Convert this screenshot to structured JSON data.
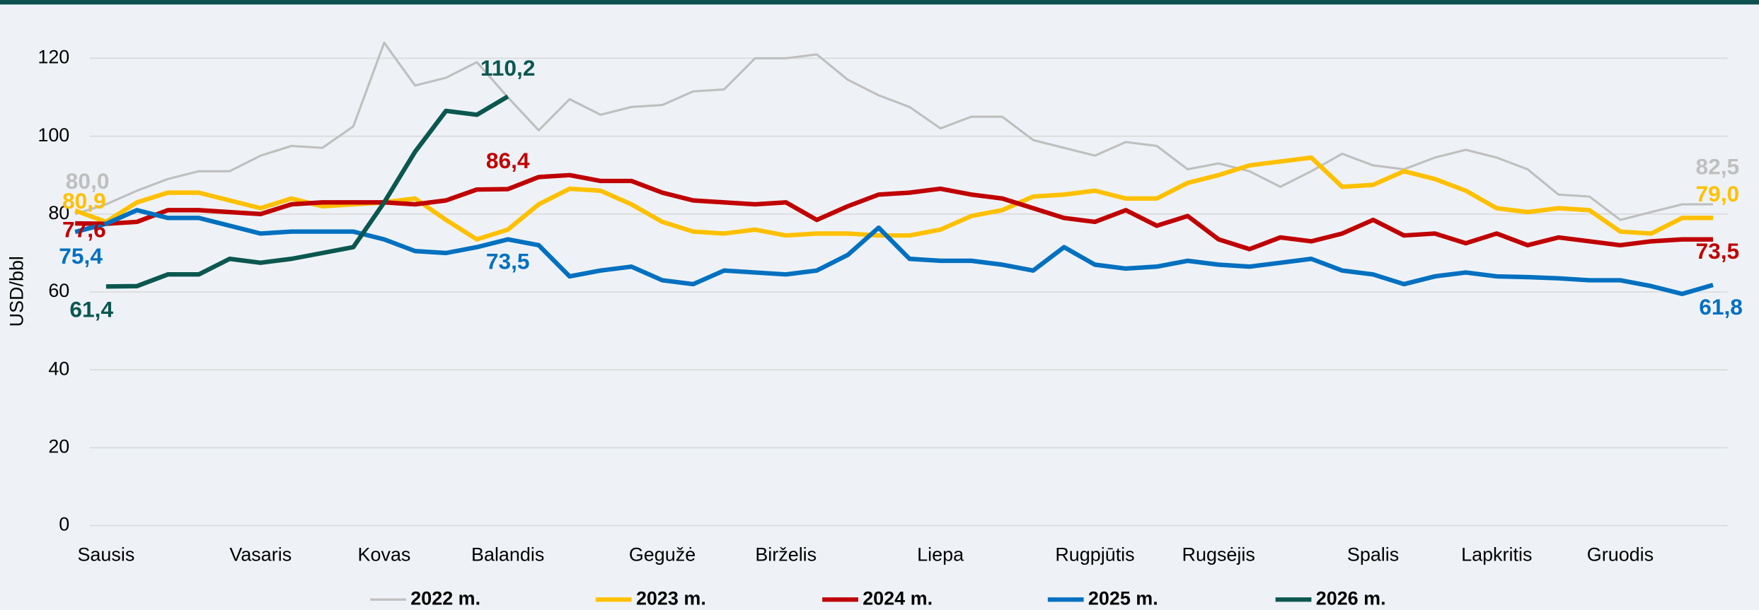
{
  "chart_data": {
    "type": "line",
    "ylabel": "USD/bbl",
    "categories": [
      null,
      "Sausis",
      null,
      null,
      null,
      null,
      "Vasaris",
      null,
      null,
      null,
      "Kovas",
      null,
      null,
      null,
      "Balandis",
      null,
      null,
      null,
      null,
      "Gegužė",
      null,
      null,
      null,
      "Birželis",
      null,
      null,
      null,
      null,
      "Liepa",
      null,
      null,
      null,
      null,
      "Rugpjūtis",
      null,
      null,
      null,
      "Rugsėjis",
      null,
      null,
      null,
      null,
      "Spalis",
      null,
      null,
      null,
      "Lapkritis",
      null,
      null,
      null,
      "Gruodis",
      null,
      null,
      null
    ],
    "ylim": [
      0,
      120
    ],
    "yticks": [
      0,
      20,
      40,
      60,
      80,
      100,
      120
    ],
    "grid": true,
    "legend": "bottom",
    "series": [
      {
        "name": "2022 m.",
        "color": "#bfbfbf",
        "values": [
          80.0,
          82.5,
          86,
          89,
          91,
          91,
          95,
          97.5,
          97,
          102.5,
          124,
          113,
          115,
          119,
          110,
          101.5,
          109.5,
          105.5,
          107.5,
          108,
          111.5,
          112,
          120,
          120,
          121,
          114.5,
          110.5,
          107.5,
          102,
          105,
          105,
          99,
          97,
          95,
          98.5,
          97.5,
          91.5,
          93,
          91,
          87,
          91,
          95.5,
          92.5,
          91.5,
          94.5,
          96.5,
          94.5,
          91.5,
          85,
          84.5,
          78.5,
          80.5,
          82.5,
          82.5
        ],
        "value_labels": [
          "80,0",
          null,
          null,
          null,
          null,
          null,
          null,
          null,
          null,
          null,
          null,
          null,
          null,
          null,
          null,
          null,
          null,
          null,
          null,
          null,
          null,
          null,
          null,
          null,
          null,
          null,
          null,
          null,
          null,
          null,
          null,
          null,
          null,
          null,
          null,
          null,
          null,
          null,
          null,
          null,
          null,
          null,
          null,
          null,
          null,
          null,
          null,
          null,
          null,
          null,
          null,
          null,
          null,
          "82,5"
        ]
      },
      {
        "name": "2023 m.",
        "color": "#ffc000",
        "values": [
          80.9,
          78,
          83,
          85.5,
          85.5,
          83.5,
          81.5,
          84,
          82,
          82.5,
          83,
          84,
          78.5,
          73.5,
          76,
          82.5,
          86.5,
          86,
          82.5,
          78,
          75.5,
          75,
          76,
          74.5,
          75,
          75,
          74.5,
          74.5,
          76,
          79.5,
          81,
          84.5,
          85,
          86,
          84,
          84,
          88,
          90,
          92.5,
          93.5,
          94.5,
          87,
          87.5,
          91,
          89,
          86,
          81.5,
          80.5,
          81.5,
          81,
          75.5,
          75,
          79,
          79.0
        ],
        "value_labels": [
          "80,9",
          null,
          null,
          null,
          null,
          null,
          null,
          null,
          null,
          null,
          null,
          null,
          null,
          null,
          null,
          null,
          null,
          null,
          null,
          null,
          null,
          null,
          null,
          null,
          null,
          null,
          null,
          null,
          null,
          null,
          null,
          null,
          null,
          null,
          null,
          null,
          null,
          null,
          null,
          null,
          null,
          null,
          null,
          null,
          null,
          null,
          null,
          null,
          null,
          null,
          null,
          null,
          null,
          "79,0"
        ]
      },
      {
        "name": "2024 m.",
        "color": "#c00000",
        "values": [
          77.6,
          77.5,
          78,
          81,
          81,
          80.5,
          80,
          82.5,
          83,
          83,
          83,
          82.5,
          83.5,
          86.3,
          86.4,
          89.5,
          90,
          88.5,
          88.5,
          85.5,
          83.5,
          83,
          82.5,
          83,
          78.5,
          82,
          85,
          85.5,
          86.5,
          85,
          84,
          81.5,
          79,
          78,
          81,
          77,
          79.5,
          73.5,
          71,
          74,
          73,
          75,
          78.5,
          74.5,
          75,
          72.5,
          75,
          72,
          74,
          73,
          72,
          73,
          73.5,
          73.5
        ],
        "value_labels": [
          "77,6",
          null,
          null,
          null,
          null,
          null,
          null,
          null,
          null,
          null,
          null,
          null,
          null,
          null,
          "86,4",
          null,
          null,
          null,
          null,
          null,
          null,
          null,
          null,
          null,
          null,
          null,
          null,
          null,
          null,
          null,
          null,
          null,
          null,
          null,
          null,
          null,
          null,
          null,
          null,
          null,
          null,
          null,
          null,
          null,
          null,
          null,
          null,
          null,
          null,
          null,
          null,
          null,
          null,
          "73,5"
        ]
      },
      {
        "name": "2025 m.",
        "color": "#0070c0",
        "values": [
          75.4,
          77.5,
          81,
          79,
          79,
          77,
          75,
          75.5,
          75.5,
          75.5,
          73.5,
          70.5,
          70,
          71.5,
          73.5,
          72,
          64,
          65.5,
          66.5,
          63,
          62,
          65.5,
          65,
          64.5,
          65.5,
          69.5,
          76.5,
          68.5,
          68,
          68,
          67,
          65.5,
          71.5,
          67,
          66,
          66.5,
          68,
          67,
          66.5,
          67.5,
          68.5,
          65.5,
          64.5,
          62,
          64,
          65,
          64,
          63.8,
          63.5,
          63,
          63,
          61.5,
          59.5,
          61.8
        ],
        "value_labels": [
          "75,4",
          null,
          null,
          null,
          null,
          null,
          null,
          null,
          null,
          null,
          null,
          null,
          null,
          null,
          "73,5",
          null,
          null,
          null,
          null,
          null,
          null,
          null,
          null,
          null,
          null,
          null,
          null,
          null,
          null,
          null,
          null,
          null,
          null,
          null,
          null,
          null,
          null,
          null,
          null,
          null,
          null,
          null,
          null,
          null,
          null,
          null,
          null,
          null,
          null,
          null,
          null,
          null,
          null,
          "61,8"
        ]
      },
      {
        "name": "2026 m.",
        "color": "#0b5750",
        "values": [
          null,
          61.4,
          61.5,
          64.5,
          64.5,
          68.5,
          67.5,
          68.5,
          70,
          71.5,
          83,
          96,
          106.5,
          105.5,
          110.2,
          null,
          null,
          null,
          null,
          null,
          null,
          null,
          null,
          null,
          null,
          null,
          null,
          null,
          null,
          null,
          null,
          null,
          null,
          null,
          null,
          null,
          null,
          null,
          null,
          null,
          null,
          null,
          null,
          null,
          null,
          null,
          null,
          null,
          null,
          null,
          null,
          null,
          null,
          null
        ],
        "value_labels": [
          null,
          "61,4",
          null,
          null,
          null,
          null,
          null,
          null,
          null,
          null,
          null,
          null,
          null,
          null,
          "110,2",
          null,
          null,
          null,
          null,
          null,
          null,
          null,
          null,
          null,
          null,
          null,
          null,
          null,
          null,
          null,
          null,
          null,
          null,
          null,
          null,
          null,
          null,
          null,
          null,
          null,
          null,
          null,
          null,
          null,
          null,
          null,
          null,
          null,
          null,
          null,
          null,
          null,
          null,
          null
        ]
      }
    ]
  }
}
